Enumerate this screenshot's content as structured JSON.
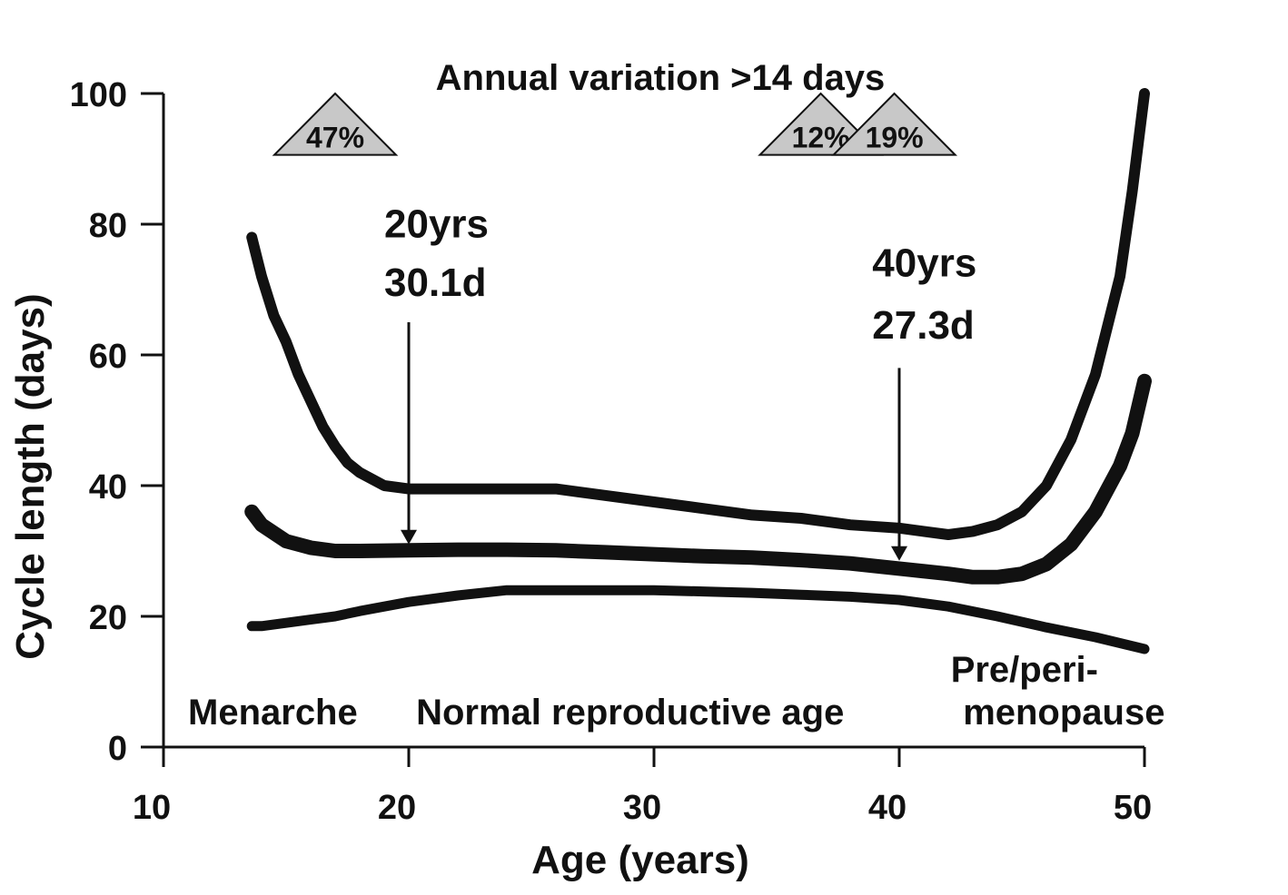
{
  "chart_data": {
    "type": "line",
    "title": "Annual variation >14 days",
    "xlabel": "Age (years)",
    "ylabel": "Cycle length (days)",
    "xlim": [
      10,
      50
    ],
    "ylim": [
      0,
      100
    ],
    "xticks": [
      "10",
      "20",
      "30",
      "40",
      "50"
    ],
    "yticks": [
      "0",
      "20",
      "40",
      "60",
      "80",
      "100"
    ],
    "grid": false,
    "legend": "none",
    "series": [
      {
        "key": "upper",
        "x": [
          13.6,
          14,
          14.5,
          15,
          15.5,
          16,
          16.5,
          17,
          17.5,
          18,
          19,
          20,
          22,
          24,
          26,
          28,
          30,
          32,
          34,
          36,
          38,
          40,
          42,
          43,
          44,
          45,
          46,
          47,
          48,
          49,
          49.5,
          50
        ],
        "values": [
          78,
          72,
          66,
          62,
          57,
          53,
          49,
          46,
          43.5,
          42,
          40,
          39.5,
          39.5,
          39.5,
          39.5,
          38.5,
          37.5,
          36.5,
          35.5,
          35,
          34,
          33.5,
          32.5,
          33,
          34,
          36,
          40,
          47,
          57,
          72,
          85,
          100
        ]
      },
      {
        "key": "median",
        "x": [
          13.6,
          14,
          15,
          16,
          17,
          18,
          20,
          22,
          24,
          26,
          28,
          30,
          32,
          34,
          36,
          38,
          40,
          42,
          43,
          44,
          45,
          46,
          47,
          48,
          49,
          49.5,
          50
        ],
        "values": [
          36,
          34,
          31.5,
          30.5,
          30,
          30,
          30.1,
          30.2,
          30.2,
          30.1,
          29.8,
          29.5,
          29.2,
          29,
          28.6,
          28.1,
          27.3,
          26.5,
          26,
          26,
          26.5,
          28,
          31,
          36,
          43,
          48,
          56
        ]
      },
      {
        "key": "lower",
        "x": [
          13.6,
          14,
          15,
          16,
          17,
          18,
          19,
          20,
          22,
          24,
          26,
          28,
          30,
          32,
          34,
          36,
          38,
          40,
          42,
          44,
          46,
          48,
          50
        ],
        "values": [
          18.5,
          18.5,
          19,
          19.5,
          20,
          20.8,
          21.5,
          22.2,
          23.2,
          24,
          24,
          24,
          24,
          23.8,
          23.6,
          23.3,
          23,
          22.5,
          21.5,
          20,
          18.3,
          16.8,
          15
        ]
      }
    ],
    "markers": [
      {
        "label": "47%",
        "x": 17,
        "y": 91
      },
      {
        "label": "12%",
        "x": 36.8,
        "y": 91
      },
      {
        "label": "19%",
        "x": 39.8,
        "y": 91
      }
    ],
    "annotations": [
      {
        "line1": "20yrs",
        "line2": "30.1d",
        "text_x": 19,
        "text_y1": 78,
        "text_y2": 69,
        "arrow_x": 20,
        "arrow_from": 65,
        "arrow_to": 31
      },
      {
        "line1": "40yrs",
        "line2": "27.3d",
        "text_x": 38.9,
        "text_y1": 72,
        "text_y2": 62.5,
        "arrow_x": 40,
        "arrow_from": 58,
        "arrow_to": 28.5
      }
    ],
    "phase_labels": [
      {
        "text": "Menarche",
        "x": 11,
        "y": 3.5
      },
      {
        "text": "Normal reproductive age",
        "x": 20.3,
        "y": 3.5
      },
      {
        "text": "Pre/peri-",
        "x": 42.1,
        "y": 10
      },
      {
        "text": "menopause",
        "x": 42.6,
        "y": 3.5
      }
    ]
  }
}
